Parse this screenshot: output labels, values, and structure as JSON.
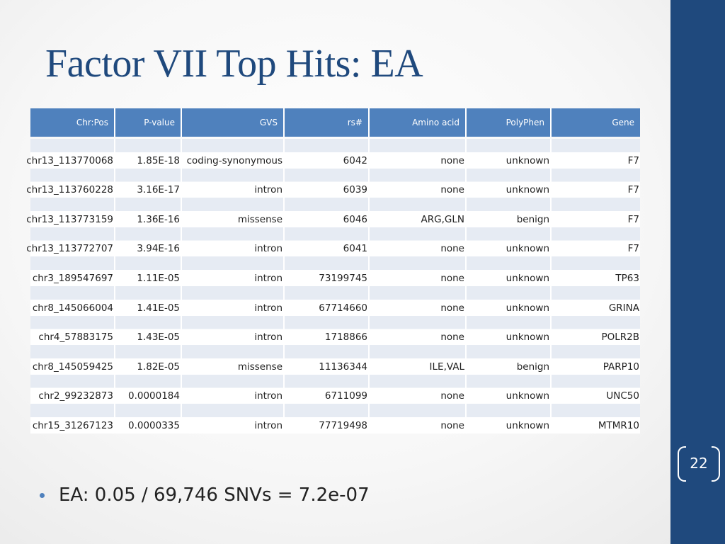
{
  "title": "Factor VII Top Hits: EA",
  "table": {
    "headers": [
      "Chr:Pos",
      "P-value",
      "GVS",
      "rs#",
      "Amino acid",
      "PolyPhen",
      "Gene"
    ],
    "rows": [
      [
        "chr13_113770068",
        "1.85E-18",
        "coding-synonymous",
        "6042",
        "none",
        "unknown",
        "F7"
      ],
      [
        "chr13_113760228",
        "3.16E-17",
        "intron",
        "6039",
        "none",
        "unknown",
        "F7"
      ],
      [
        "chr13_113773159",
        "1.36E-16",
        "missense",
        "6046",
        "ARG,GLN",
        "benign",
        "F7"
      ],
      [
        "chr13_113772707",
        "3.94E-16",
        "intron",
        "6041",
        "none",
        "unknown",
        "F7"
      ],
      [
        "chr3_189547697",
        "1.11E-05",
        "intron",
        "73199745",
        "none",
        "unknown",
        "TP63"
      ],
      [
        "chr8_145066004",
        "1.41E-05",
        "intron",
        "67714660",
        "none",
        "unknown",
        "GRINA"
      ],
      [
        "chr4_57883175",
        "1.43E-05",
        "intron",
        "1718866",
        "none",
        "unknown",
        "POLR2B"
      ],
      [
        "chr8_145059425",
        "1.82E-05",
        "missense",
        "11136344",
        "ILE,VAL",
        "benign",
        "PARP10"
      ],
      [
        "chr2_99232873",
        "0.0000184",
        "intron",
        "6711099",
        "none",
        "unknown",
        "UNC50"
      ],
      [
        "chr15_31267123",
        "0.0000335",
        "intron",
        "77719498",
        "none",
        "unknown",
        "MTMR10"
      ]
    ]
  },
  "bullets": [
    "EA: 0.05 / 69,746 SNVs = 7.2e-07"
  ],
  "page_number": "22",
  "colors": {
    "title": "#1f497d",
    "band": "#1f497d",
    "header": "#4f81bd",
    "row_shade": "#e6ebf3"
  }
}
